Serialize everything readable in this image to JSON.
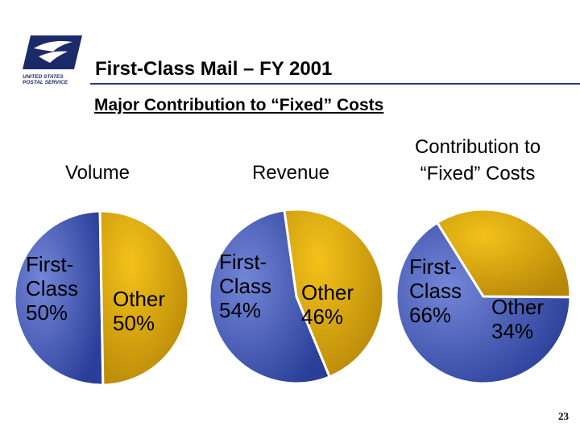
{
  "header": {
    "logo_line1": "UNITED STATES",
    "logo_line2": "POSTAL SERVICE",
    "title": "First-Class Mail – FY 2001",
    "subtitle": "Major Contribution to “Fixed” Costs"
  },
  "colors": {
    "first_class_slice": "#3d58b8",
    "other_slice": "#d8a50c",
    "rule": "#1f3e8c",
    "logo": "#1d2a6a"
  },
  "chart_data": [
    {
      "type": "pie",
      "title": "Volume",
      "slices": [
        {
          "label_lines": [
            "First-",
            "Class",
            "50%"
          ],
          "value": 50
        },
        {
          "label_lines": [
            "Other",
            "50%"
          ],
          "value": 50
        }
      ]
    },
    {
      "type": "pie",
      "title": "Revenue",
      "slices": [
        {
          "label_lines": [
            "First-",
            "Class",
            "54%"
          ],
          "value": 54
        },
        {
          "label_lines": [
            "Other",
            "46%"
          ],
          "value": 46
        }
      ]
    },
    {
      "type": "pie",
      "title_lines": [
        "Contribution to",
        "“Fixed” Costs"
      ],
      "slices": [
        {
          "label_lines": [
            "First-",
            "Class",
            "66%"
          ],
          "value": 66
        },
        {
          "label_lines": [
            "Other",
            "34%"
          ],
          "value": 34
        }
      ]
    }
  ],
  "footer": {
    "page_number": "23"
  }
}
